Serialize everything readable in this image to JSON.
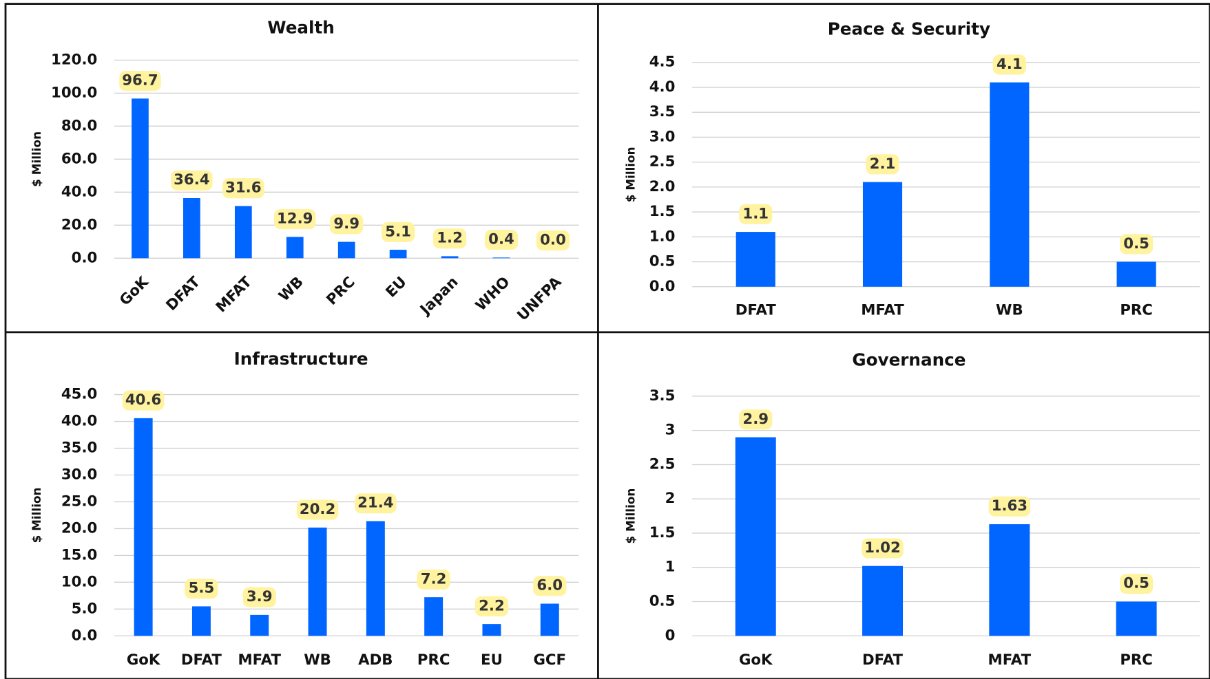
{
  "chart_data": [
    {
      "type": "bar",
      "title": "Wealth",
      "ylabel": "$ Million",
      "categories": [
        "GoK",
        "DFAT",
        "MFAT",
        "WB",
        "PRC",
        "EU",
        "Japan",
        "WHO",
        "UNFPA"
      ],
      "values": [
        96.7,
        36.4,
        31.6,
        12.9,
        9.9,
        5.1,
        1.2,
        0.4,
        0
      ],
      "value_labels": [
        "96.7",
        "36.4",
        "31.6",
        "12.9",
        "9.9",
        "5.1",
        "1.2",
        "0.4",
        "0.0"
      ],
      "color": "#0066ff",
      "ylim": [
        0,
        120
      ],
      "yticks": [
        {
          "value": 0,
          "label": "0.0"
        },
        {
          "value": 20,
          "label": "20.0"
        },
        {
          "value": 40,
          "label": "40.0"
        },
        {
          "value": 60,
          "label": "60.0"
        },
        {
          "value": 80,
          "label": "80.0"
        },
        {
          "value": 100,
          "label": "100.0"
        },
        {
          "value": 120,
          "label": "120.0"
        }
      ],
      "grid": true,
      "rotated_labels": true
    },
    {
      "type": "bar",
      "title": "Peace & Security",
      "ylabel": "$ Million",
      "categories": [
        "DFAT",
        "MFAT",
        "WB",
        "PRC"
      ],
      "values": [
        1.1,
        2.1,
        4.1,
        0.5
      ],
      "color": "#0066ff",
      "ylim": [
        0,
        4.5
      ],
      "yticks": [
        {
          "value": 0,
          "label": "0.0"
        },
        0.5,
        {
          "value": 1,
          "label": "1.0"
        },
        1.5,
        {
          "value": 2,
          "label": "2.0"
        },
        2.5,
        {
          "value": 3,
          "label": "3.0"
        },
        3.5,
        {
          "value": 4,
          "label": "4.0"
        },
        4.5
      ],
      "grid": true
    },
    {
      "type": "bar",
      "title": "Infrastructure",
      "ylabel": "$ Million",
      "categories": [
        "GoK",
        "DFAT",
        "MFAT",
        "WB",
        "ADB",
        "PRC",
        "EU",
        "GCF"
      ],
      "values": [
        40.6,
        5.5,
        3.9,
        20.2,
        21.4,
        7.2,
        2.2,
        6
      ],
      "value_labels": [
        "40.6",
        "5.5",
        "3.9",
        "20.2",
        "21.4",
        "7.2",
        "2.2",
        "6.0"
      ],
      "color": "#0066ff",
      "ylim": [
        0,
        45
      ],
      "yticks": [
        {
          "value": 0,
          "label": "0.0"
        },
        {
          "value": 5,
          "label": "5.0"
        },
        {
          "value": 10,
          "label": "10.0"
        },
        {
          "value": 15,
          "label": "15.0"
        },
        {
          "value": 20,
          "label": "20.0"
        },
        {
          "value": 25,
          "label": "25.0"
        },
        {
          "value": 30,
          "label": "30.0"
        },
        {
          "value": 35,
          "label": "35.0"
        },
        {
          "value": 40,
          "label": "40.0"
        },
        {
          "value": 45,
          "label": "45.0"
        }
      ],
      "grid": true
    },
    {
      "type": "bar",
      "title": "Governance",
      "ylabel": "$ Million",
      "categories": [
        "GoK",
        "DFAT",
        "MFAT",
        "PRC"
      ],
      "values": [
        2.9,
        1.02,
        1.63,
        0.5
      ],
      "color": "#0066ff",
      "ylim": [
        0,
        3.5
      ],
      "yticks": [
        0,
        0.5,
        1,
        1.5,
        2,
        2.5,
        3,
        3.5
      ],
      "grid": true
    }
  ]
}
